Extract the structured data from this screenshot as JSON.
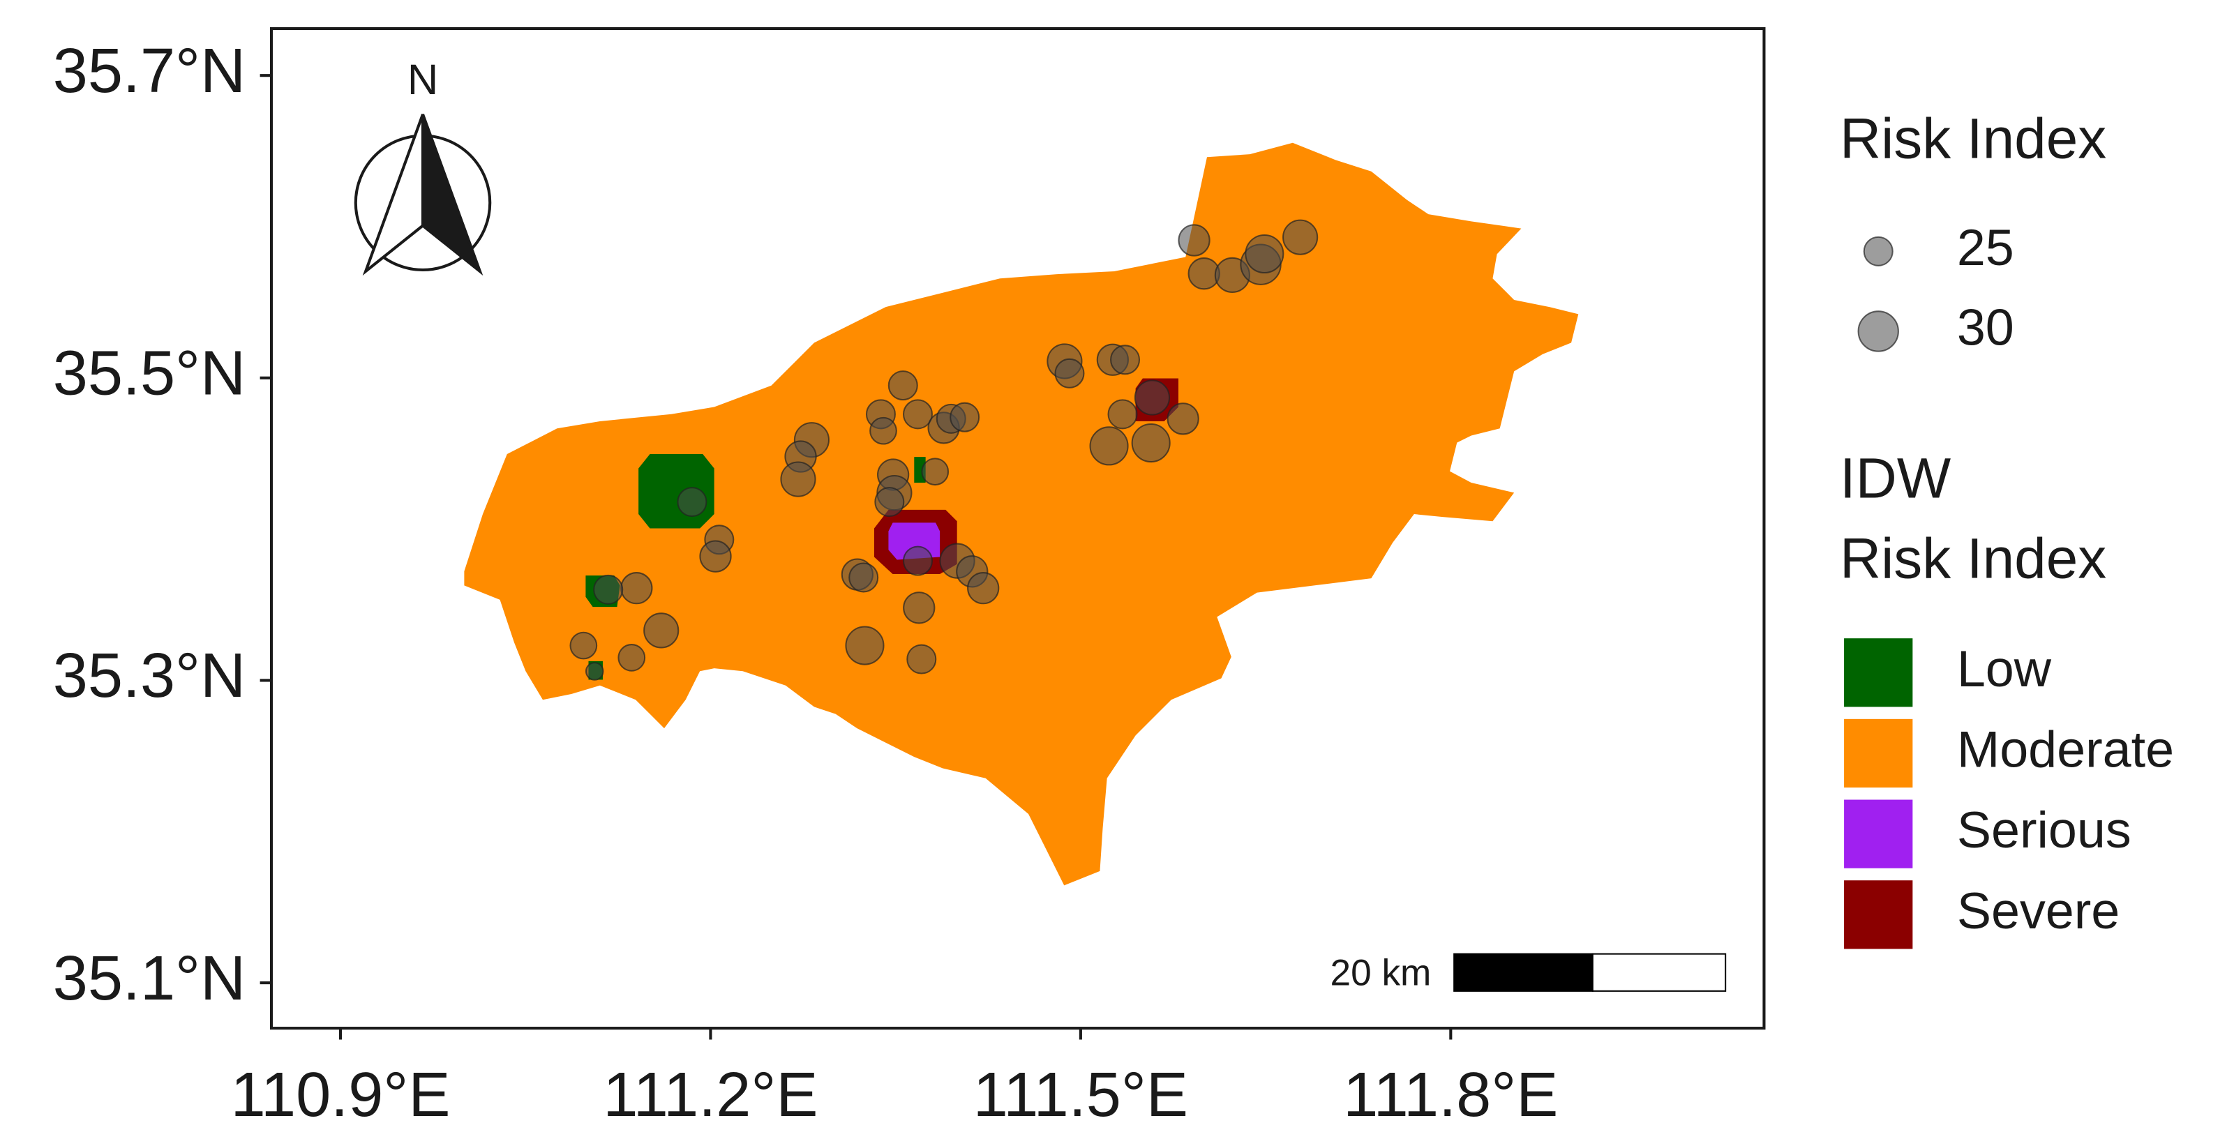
{
  "chart_data": {
    "type": "map",
    "xlim": [
      110.844,
      112.054
    ],
    "ylim": [
      35.07,
      35.731
    ],
    "xticks": [
      {
        "value": 110.9,
        "label": "110.9°E"
      },
      {
        "value": 111.2,
        "label": "111.2°E"
      },
      {
        "value": 111.5,
        "label": "111.5°E"
      },
      {
        "value": 111.8,
        "label": "111.8°E"
      }
    ],
    "yticks": [
      {
        "value": 35.1,
        "label": "35.1°N"
      },
      {
        "value": 35.3,
        "label": "35.3°N"
      },
      {
        "value": 35.5,
        "label": "35.5°N"
      },
      {
        "value": 35.7,
        "label": "35.7°N"
      }
    ],
    "north_label": "N",
    "scale_bar_label": "20 km",
    "point_color": "#4d4d4d",
    "size_legend": {
      "title": "Risk Index",
      "values": [
        25,
        30
      ]
    },
    "fill_legend": {
      "title_lines": [
        "IDW",
        "Risk Index"
      ],
      "items": [
        {
          "name": "Low",
          "color": "#006400"
        },
        {
          "name": "Moderate",
          "color": "#FF8C00"
        },
        {
          "name": "Serious",
          "color": "#A020F0"
        },
        {
          "name": "Severe",
          "color": "#8B0000"
        }
      ]
    },
    "points": {
      "lon": [
        111.592,
        111.6,
        111.623,
        111.646,
        111.649,
        111.678,
        111.487,
        111.491,
        111.526,
        111.536,
        111.558,
        111.534,
        111.583,
        111.523,
        111.557,
        111.356,
        111.338,
        111.34,
        111.368,
        111.389,
        111.395,
        111.406,
        111.382,
        111.348,
        111.349,
        111.345,
        111.282,
        111.273,
        111.271,
        111.185,
        111.207,
        111.204,
        111.319,
        111.324,
        111.368,
        111.4,
        111.412,
        111.421,
        111.369,
        111.325,
        111.371,
        111.14,
        111.117,
        111.16,
        111.097,
        111.136,
        111.106
      ],
      "lat": [
        35.591,
        35.569,
        35.568,
        35.575,
        35.582,
        35.593,
        35.511,
        35.503,
        35.512,
        35.512,
        35.487,
        35.476,
        35.473,
        35.455,
        35.457,
        35.495,
        35.476,
        35.465,
        35.476,
        35.467,
        35.473,
        35.474,
        35.438,
        35.436,
        35.424,
        35.418,
        35.459,
        35.448,
        35.433,
        35.418,
        35.393,
        35.382,
        35.37,
        35.368,
        35.379,
        35.379,
        35.372,
        35.361,
        35.348,
        35.323,
        35.314,
        35.361,
        35.36,
        35.333,
        35.323,
        35.315,
        35.306
      ],
      "risk": [
        26,
        26,
        27.5,
        30,
        29,
        27.5,
        27.5,
        25,
        26,
        25,
        27.5,
        25,
        26,
        29,
        29,
        25,
        25,
        24,
        25,
        26,
        25,
        25,
        24,
        26,
        27.5,
        25,
        27.5,
        26,
        27.5,
        25,
        25,
        26,
        26,
        25,
        25,
        27.5,
        26,
        26,
        26,
        29,
        25,
        26,
        25,
        27.5,
        24,
        24,
        20
      ]
    }
  }
}
